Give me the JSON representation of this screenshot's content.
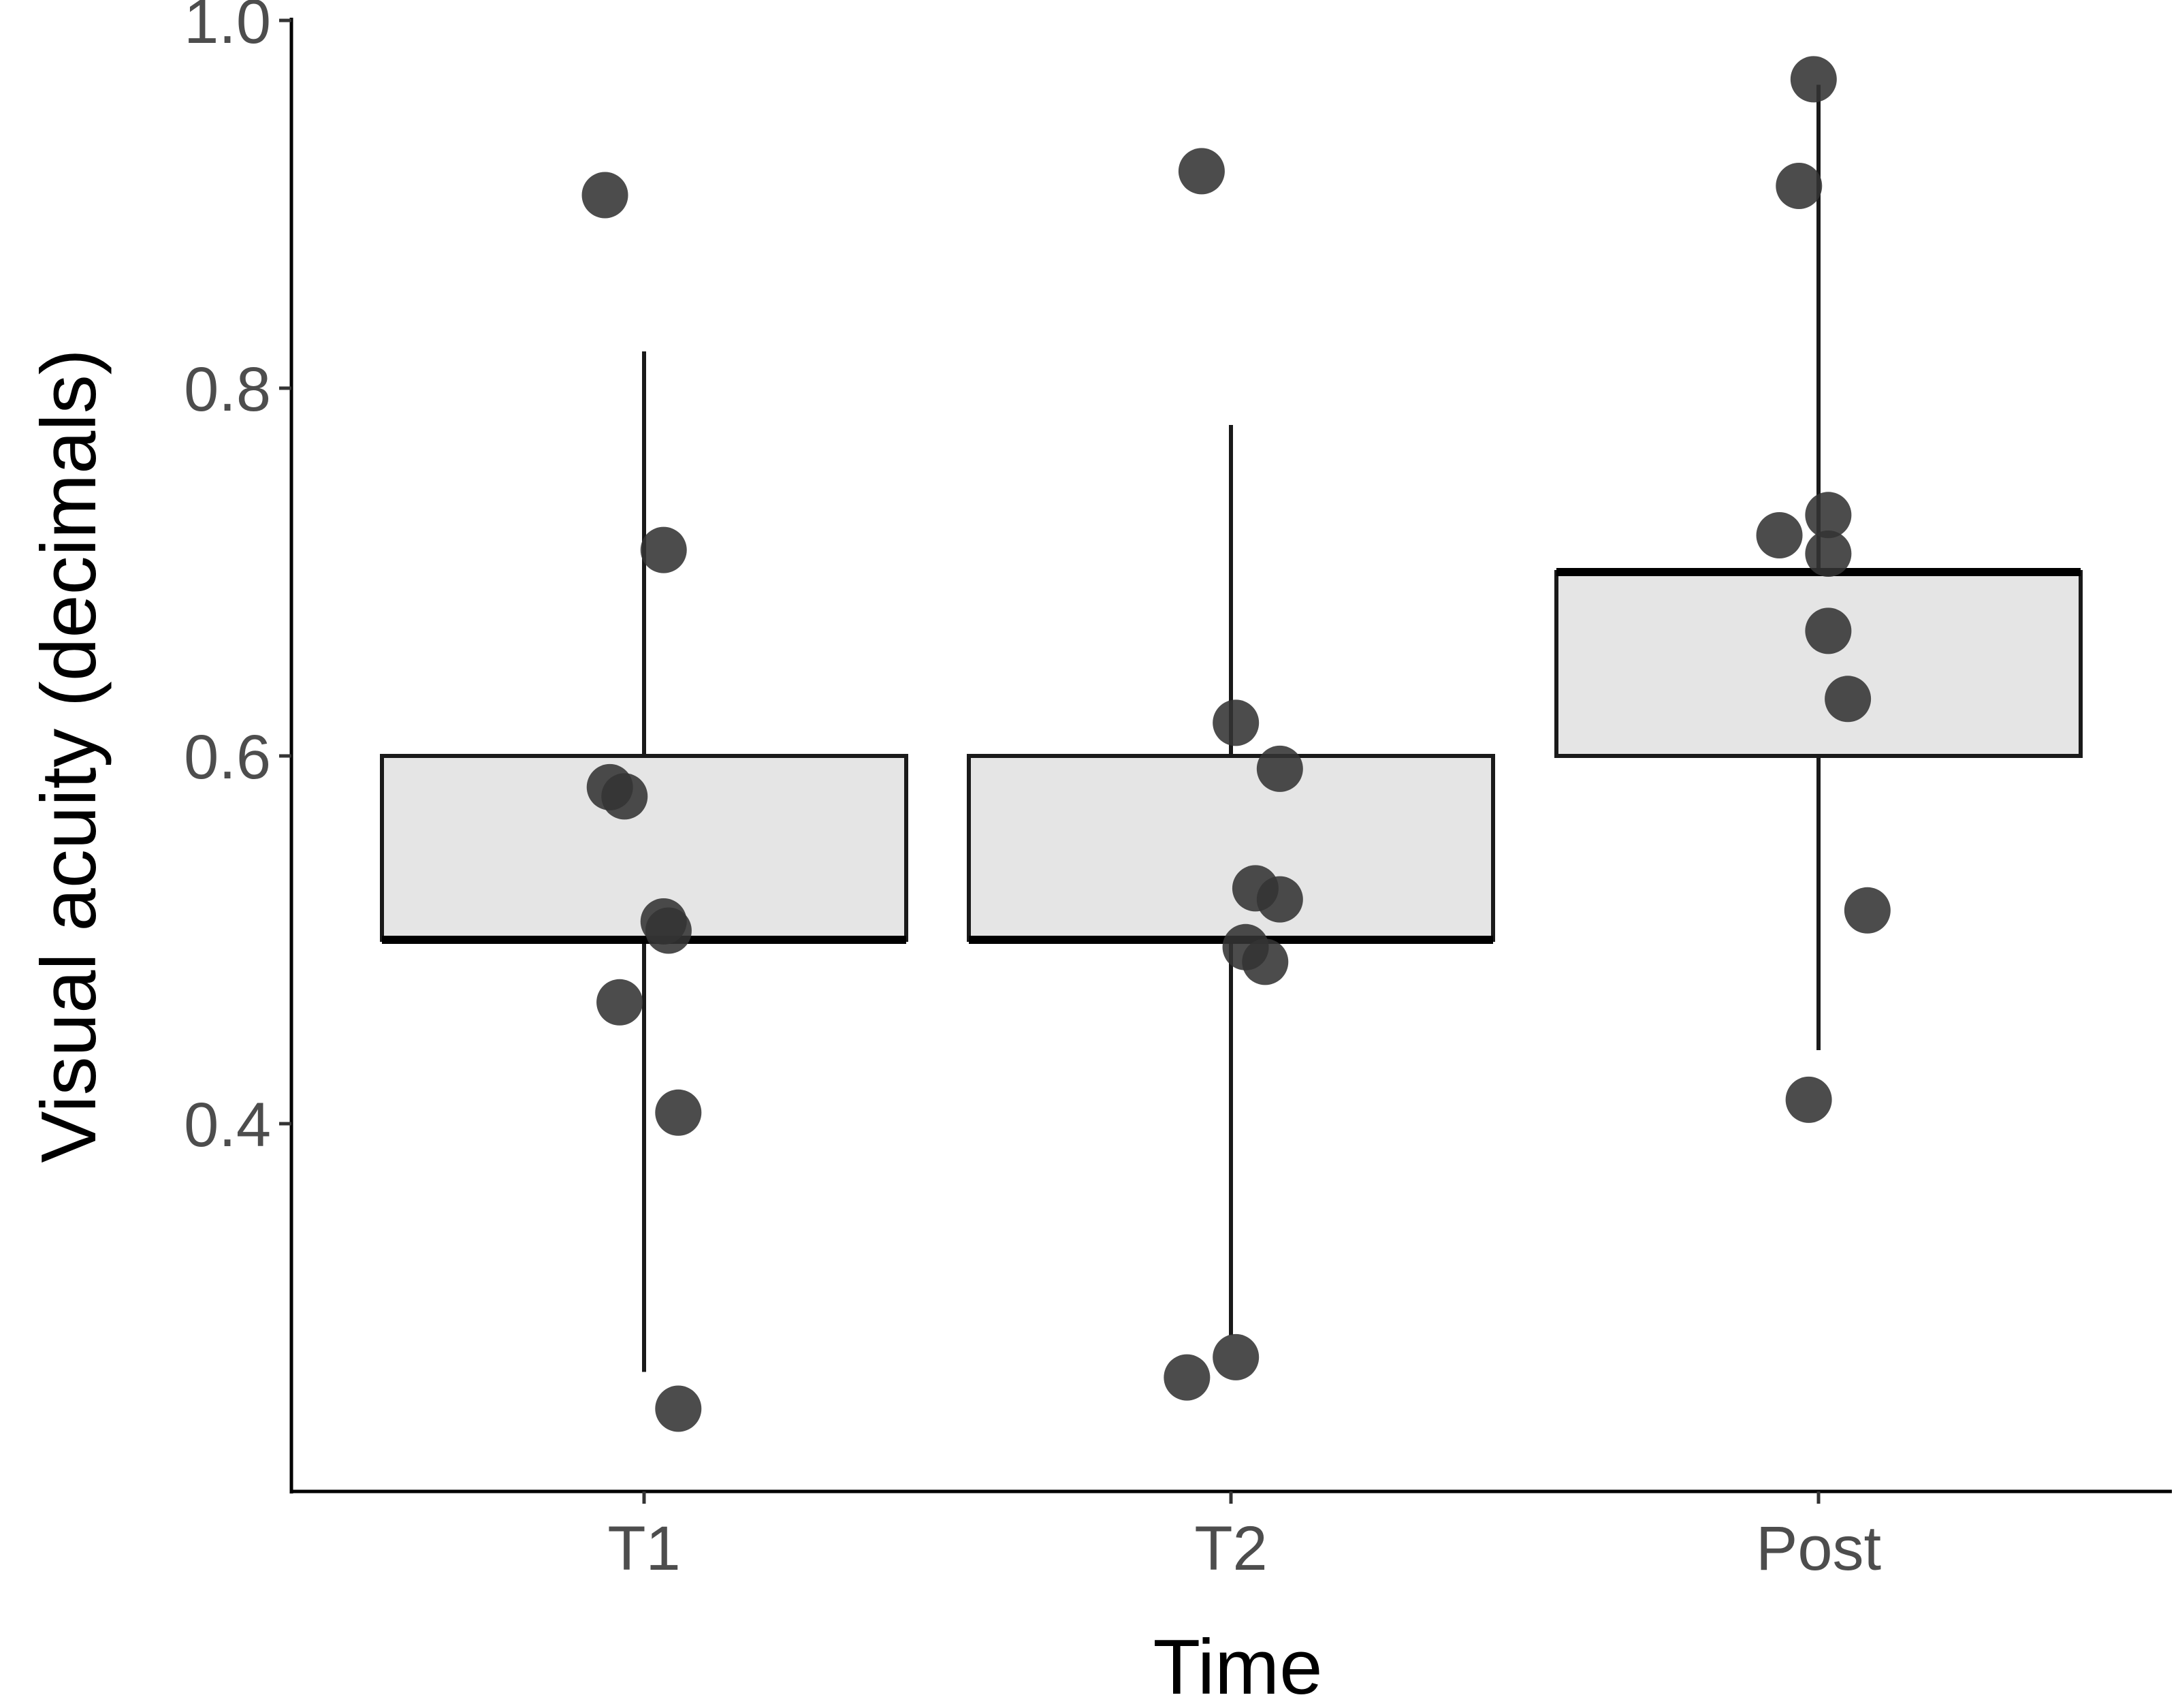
{
  "chart_data": {
    "type": "box",
    "xlabel": "Time",
    "ylabel": "Visual acuity (decimals)",
    "categories": [
      "T1",
      "T2",
      "Post"
    ],
    "ylim": [
      0.2,
      1.0
    ],
    "yticks": [
      0.4,
      0.6,
      0.8,
      1.0
    ],
    "ytick_labels": [
      "0.4",
      "0.6",
      "0.8",
      "1.0"
    ],
    "grid": false,
    "legend": "none",
    "boxes": [
      {
        "category": "T1",
        "whisker_low": 0.265,
        "q1": 0.5,
        "median": 0.5,
        "q3": 0.6,
        "whisker_high": 0.82
      },
      {
        "category": "T2",
        "whisker_low": 0.285,
        "q1": 0.5,
        "median": 0.5,
        "q3": 0.6,
        "whisker_high": 0.78
      },
      {
        "category": "Post",
        "whisker_low": 0.44,
        "q1": 0.6,
        "median": 0.7,
        "q3": 0.7,
        "whisker_high": 0.965
      }
    ],
    "points": [
      {
        "category": "T1",
        "jitter": -0.08,
        "y": 0.905
      },
      {
        "category": "T1",
        "jitter": 0.04,
        "y": 0.712
      },
      {
        "category": "T1",
        "jitter": -0.07,
        "y": 0.583
      },
      {
        "category": "T1",
        "jitter": -0.04,
        "y": 0.578
      },
      {
        "category": "T1",
        "jitter": 0.04,
        "y": 0.51
      },
      {
        "category": "T1",
        "jitter": 0.05,
        "y": 0.505
      },
      {
        "category": "T1",
        "jitter": -0.05,
        "y": 0.466
      },
      {
        "category": "T1",
        "jitter": 0.07,
        "y": 0.406
      },
      {
        "category": "T1",
        "jitter": 0.07,
        "y": 0.245
      },
      {
        "category": "T2",
        "jitter": -0.06,
        "y": 0.918
      },
      {
        "category": "T2",
        "jitter": 0.01,
        "y": 0.618
      },
      {
        "category": "T2",
        "jitter": 0.1,
        "y": 0.593
      },
      {
        "category": "T2",
        "jitter": 0.05,
        "y": 0.528
      },
      {
        "category": "T2",
        "jitter": 0.1,
        "y": 0.522
      },
      {
        "category": "T2",
        "jitter": 0.03,
        "y": 0.496
      },
      {
        "category": "T2",
        "jitter": 0.07,
        "y": 0.488
      },
      {
        "category": "T2",
        "jitter": 0.01,
        "y": 0.273
      },
      {
        "category": "T2",
        "jitter": -0.09,
        "y": 0.262
      },
      {
        "category": "Post",
        "jitter": -0.01,
        "y": 0.968
      },
      {
        "category": "Post",
        "jitter": -0.04,
        "y": 0.91
      },
      {
        "category": "Post",
        "jitter": 0.02,
        "y": 0.731
      },
      {
        "category": "Post",
        "jitter": -0.08,
        "y": 0.72
      },
      {
        "category": "Post",
        "jitter": 0.02,
        "y": 0.71
      },
      {
        "category": "Post",
        "jitter": 0.02,
        "y": 0.668
      },
      {
        "category": "Post",
        "jitter": 0.06,
        "y": 0.631
      },
      {
        "category": "Post",
        "jitter": 0.1,
        "y": 0.516
      },
      {
        "category": "Post",
        "jitter": -0.02,
        "y": 0.413
      }
    ],
    "colors": {
      "box_fill": "#e5e5e5",
      "box_stroke": "#1a1a1a",
      "point_fill": "#333333",
      "axis": "#000000"
    }
  }
}
